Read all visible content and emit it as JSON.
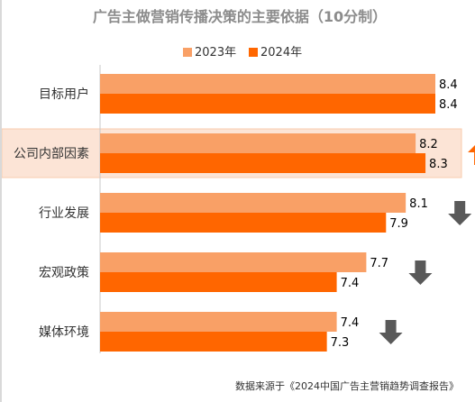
{
  "chart_data": {
    "type": "bar",
    "orientation": "horizontal",
    "title": "广告主做营销传播决策的主要依据（10分制）",
    "categories": [
      "目标用户",
      "公司内部因素",
      "行业发展",
      "宏观政策",
      "媒体环境"
    ],
    "series": [
      {
        "name": "2023年",
        "values": [
          8.4,
          8.2,
          8.1,
          7.7,
          7.4
        ],
        "color": "#F9A066"
      },
      {
        "name": "2024年",
        "values": [
          8.4,
          8.3,
          7.9,
          7.4,
          7.3
        ],
        "color": "#FF6600"
      }
    ],
    "trend": [
      "none",
      "up",
      "down",
      "down",
      "down"
    ],
    "trend_colors": {
      "up": "#FF6600",
      "down": "#595959"
    },
    "highlight_category": "公司内部因素",
    "highlight_color": "#FCE4D6",
    "legend_position": "top",
    "grid": false,
    "xlim": [
      5,
      8.5
    ],
    "source": "数据来源于《2024中国广告主营销趋势调查报告》"
  }
}
